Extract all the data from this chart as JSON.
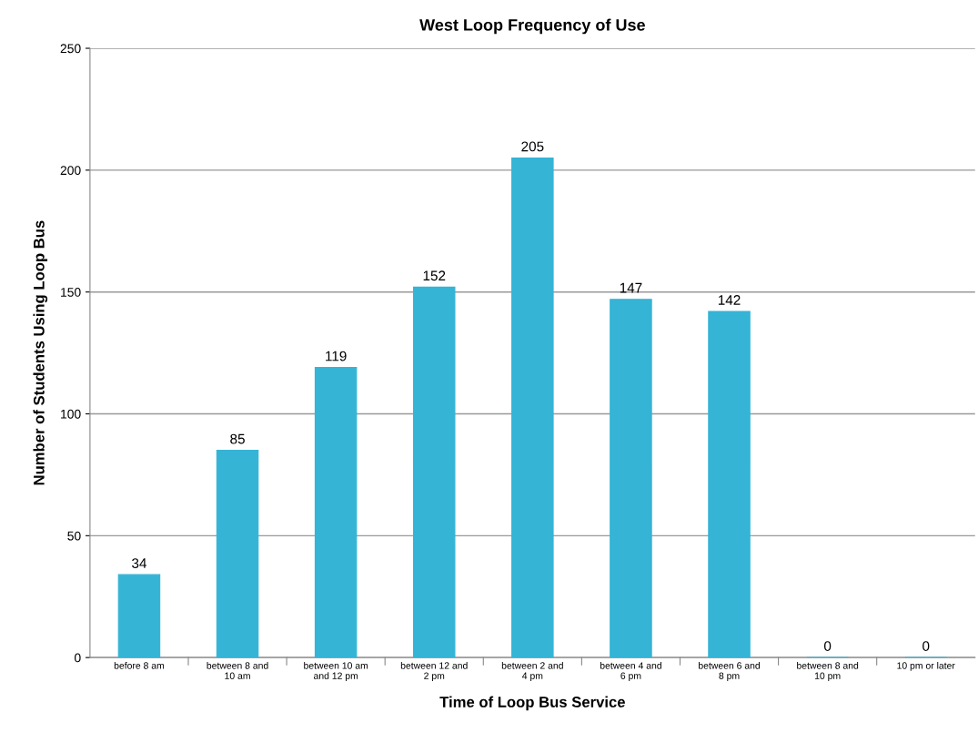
{
  "chart_data": {
    "type": "bar",
    "title": "West Loop Frequency of Use",
    "xlabel": "Time of Loop Bus Service",
    "ylabel": "Number of Students Using Loop Bus",
    "categories": [
      "before 8 am",
      "between 8 and 10 am",
      "between 10 am and 12 pm",
      "between 12 and 2 pm",
      "between 2 and 4 pm",
      "between 4 and 6 pm",
      "between 6 and 8 pm",
      "between 8 and 10 pm",
      "10 pm or later"
    ],
    "values": [
      34,
      85,
      119,
      152,
      205,
      147,
      142,
      0,
      0
    ],
    "color": "#35b4d6",
    "ylim": [
      0,
      250
    ],
    "yticks": [
      0,
      50,
      100,
      150,
      200,
      250
    ],
    "grid": "y",
    "data_labels": true
  }
}
